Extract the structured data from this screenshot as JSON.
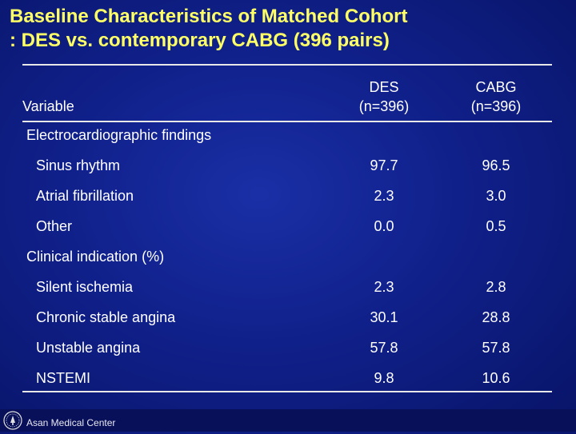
{
  "title": {
    "line1": "Baseline Characteristics of Matched Cohort",
    "line2": ": DES vs. contemporary CABG (396 pairs)"
  },
  "table": {
    "variable_header": "Variable",
    "columns": [
      {
        "name": "DES",
        "n": "(n=396)"
      },
      {
        "name": "CABG",
        "n": "(n=396)"
      }
    ],
    "sections": [
      {
        "label": "Electrocardiographic findings",
        "rows": [
          {
            "label": "Sinus rhythm",
            "des": "97.7",
            "cabg": "96.5"
          },
          {
            "label": "Atrial fibrillation",
            "des": "2.3",
            "cabg": "3.0"
          },
          {
            "label": "Other",
            "des": "0.0",
            "cabg": "0.5"
          }
        ]
      },
      {
        "label": "Clinical indication (%)",
        "rows": [
          {
            "label": "Silent ischemia",
            "des": "2.3",
            "cabg": "2.8"
          },
          {
            "label": "Chronic stable angina",
            "des": "30.1",
            "cabg": "28.8"
          },
          {
            "label": "Unstable angina",
            "des": "57.8",
            "cabg": "57.8"
          },
          {
            "label": "NSTEMI",
            "des": "9.8",
            "cabg": "10.6"
          }
        ]
      }
    ]
  },
  "footer": {
    "org": "Asan Medical Center",
    "logo_icon": "hospital-emblem-icon"
  },
  "colors": {
    "background": "#10208a",
    "title": "#ffff66",
    "text": "#ffffff"
  }
}
